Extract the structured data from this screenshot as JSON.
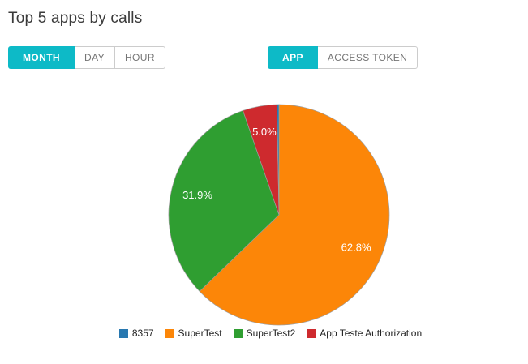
{
  "page": {
    "title": "Top 5 apps by calls"
  },
  "colors": {
    "accent": "#0dbac7",
    "button_border": "#cccccc",
    "button_text_inactive": "#757575",
    "title_text": "#3b3b3b",
    "divider": "#e2e2e2",
    "pie_stroke": "#9e9e9e",
    "pie_label_text": "#ffffff",
    "legend_text": "#222222",
    "series_blue": "#2878b0",
    "series_orange": "#fc8608",
    "series_green": "#2f9e31",
    "series_red": "#ce2a2e"
  },
  "toolbar": {
    "time_group": [
      {
        "label": "MONTH",
        "active": true
      },
      {
        "label": "DAY",
        "active": false
      },
      {
        "label": "HOUR",
        "active": false
      }
    ],
    "type_group": [
      {
        "label": "APP",
        "active": true
      },
      {
        "label": "ACCESS TOKEN",
        "active": false
      }
    ]
  },
  "chart_data": {
    "type": "pie",
    "title": "Top 5 apps by calls",
    "start_angle_deg": 0,
    "direction": "clockwise",
    "label_threshold_pct": 1,
    "legend_position": "bottom",
    "slices": [
      {
        "label": "SuperTest",
        "value_pct": 62.8,
        "pct_label": "62.8%",
        "color": "#fc8608"
      },
      {
        "label": "SuperTest2",
        "value_pct": 31.9,
        "pct_label": "31.9%",
        "color": "#2f9e31"
      },
      {
        "label": "App Teste Authorization",
        "value_pct": 5.0,
        "pct_label": "5.0%",
        "color": "#ce2a2e"
      },
      {
        "label": "8357",
        "value_pct": 0.3,
        "pct_label": "",
        "color": "#2878b0"
      }
    ],
    "legend": [
      {
        "label": "8357",
        "color": "#2878b0"
      },
      {
        "label": "SuperTest",
        "color": "#fc8608"
      },
      {
        "label": "SuperTest2",
        "color": "#2f9e31"
      },
      {
        "label": "App Teste Authorization",
        "color": "#ce2a2e"
      }
    ]
  }
}
